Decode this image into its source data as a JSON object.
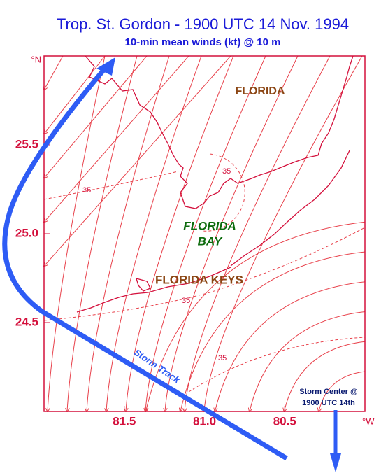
{
  "header": {
    "title": "Trop. St. Gordon - 1900 UTC 14 Nov. 1994",
    "subtitle": "10-min mean winds (kt) @ 10 m"
  },
  "map": {
    "lat_range": [
      24,
      26
    ],
    "lon_range": [
      82,
      80
    ],
    "lat_ticks": [
      24.5,
      {
        "value": 25,
        "label": "25.0"
      },
      25.5
    ],
    "lon_ticks": [
      81.5,
      {
        "value": 81,
        "label": "81.0"
      },
      80.5
    ],
    "lat_unit": "°N",
    "lon_unit": "°W"
  },
  "labels": {
    "florida": "FLORIDA",
    "florida_bay": [
      "FLORIDA",
      "BAY"
    ],
    "florida_keys": "FLORIDA KEYS",
    "storm_track": "Storm Track",
    "storm_center": [
      "Storm Center @",
      "1900 UTC 14th"
    ]
  },
  "isotachs": [
    35,
    35,
    35,
    35
  ]
}
